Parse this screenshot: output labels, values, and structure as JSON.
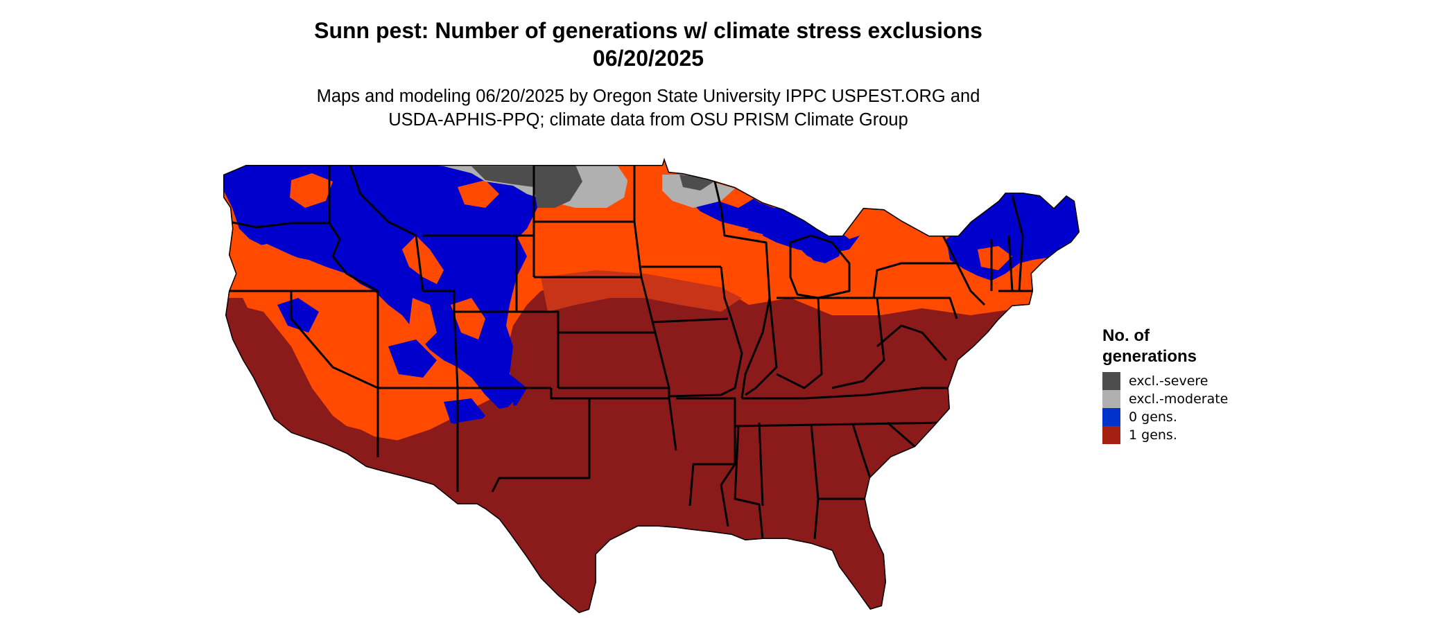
{
  "title": {
    "line1": "Sunn pest: Number of generations w/ climate stress exclusions",
    "line2": "06/20/2025"
  },
  "subtitle": {
    "line1": "Maps and modeling 06/20/2025 by Oregon State University IPPC USPEST.ORG and",
    "line2": "USDA-APHIS-PPQ; climate data from OSU PRISM Climate Group"
  },
  "legend": {
    "title_line1": "No. of",
    "title_line2": "generations",
    "items": [
      {
        "label": "excl.-severe",
        "color": "#4d4d4d"
      },
      {
        "label": "excl.-moderate",
        "color": "#b0b0b0"
      },
      {
        "label": "0 gens.",
        "color": "#0033cc"
      },
      {
        "label": "1 gens.",
        "color": "#a52010"
      }
    ]
  },
  "colors": {
    "one_gen": "#8b1a1a",
    "partial_gen": "#ff4a00",
    "zero_gen": "#0000cc",
    "excl_moderate": "#b0b0b0",
    "excl_severe": "#4d4d4d",
    "state_border": "#000000"
  }
}
